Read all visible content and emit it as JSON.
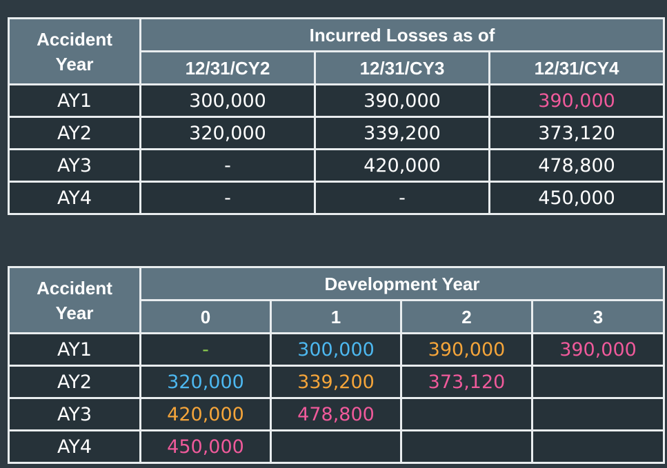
{
  "colors": {
    "background": "#2e3a42",
    "header_fill": "#5e7481",
    "cell_fill": "#263239",
    "border": "#e9edef",
    "pink": "#f05a9b",
    "blue": "#4db8f0",
    "orange": "#f5a53a",
    "green": "#8fd14f"
  },
  "table1": {
    "row_header": "Accident Year",
    "group_header": "Incurred Losses as of",
    "columns": [
      "12/31/CY2",
      "12/31/CY3",
      "12/31/CY4"
    ],
    "rows": [
      {
        "label": "AY1",
        "cells": [
          {
            "v": "300,000",
            "c": "white"
          },
          {
            "v": "390,000",
            "c": "white"
          },
          {
            "v": "390,000",
            "c": "pink"
          }
        ]
      },
      {
        "label": "AY2",
        "cells": [
          {
            "v": "320,000",
            "c": "white"
          },
          {
            "v": "339,200",
            "c": "white"
          },
          {
            "v": "373,120",
            "c": "white"
          }
        ]
      },
      {
        "label": "AY3",
        "cells": [
          {
            "v": "-",
            "c": "white"
          },
          {
            "v": "420,000",
            "c": "white"
          },
          {
            "v": "478,800",
            "c": "white"
          }
        ]
      },
      {
        "label": "AY4",
        "cells": [
          {
            "v": "-",
            "c": "white"
          },
          {
            "v": "-",
            "c": "white"
          },
          {
            "v": "450,000",
            "c": "white"
          }
        ]
      }
    ]
  },
  "table2": {
    "row_header": "Accident Year",
    "group_header": "Development Year",
    "columns": [
      "0",
      "1",
      "2",
      "3"
    ],
    "rows": [
      {
        "label": "AY1",
        "cells": [
          {
            "v": "-",
            "c": "green"
          },
          {
            "v": "300,000",
            "c": "blue"
          },
          {
            "v": "390,000",
            "c": "orange"
          },
          {
            "v": "390,000",
            "c": "pink"
          }
        ]
      },
      {
        "label": "AY2",
        "cells": [
          {
            "v": "320,000",
            "c": "blue"
          },
          {
            "v": "339,200",
            "c": "orange"
          },
          {
            "v": "373,120",
            "c": "pink"
          },
          {
            "v": "",
            "c": "white"
          }
        ]
      },
      {
        "label": "AY3",
        "cells": [
          {
            "v": "420,000",
            "c": "orange"
          },
          {
            "v": "478,800",
            "c": "pink"
          },
          {
            "v": "",
            "c": "white"
          },
          {
            "v": "",
            "c": "white"
          }
        ]
      },
      {
        "label": "AY4",
        "cells": [
          {
            "v": "450,000",
            "c": "pink"
          },
          {
            "v": "",
            "c": "white"
          },
          {
            "v": "",
            "c": "white"
          },
          {
            "v": "",
            "c": "white"
          }
        ]
      }
    ]
  }
}
